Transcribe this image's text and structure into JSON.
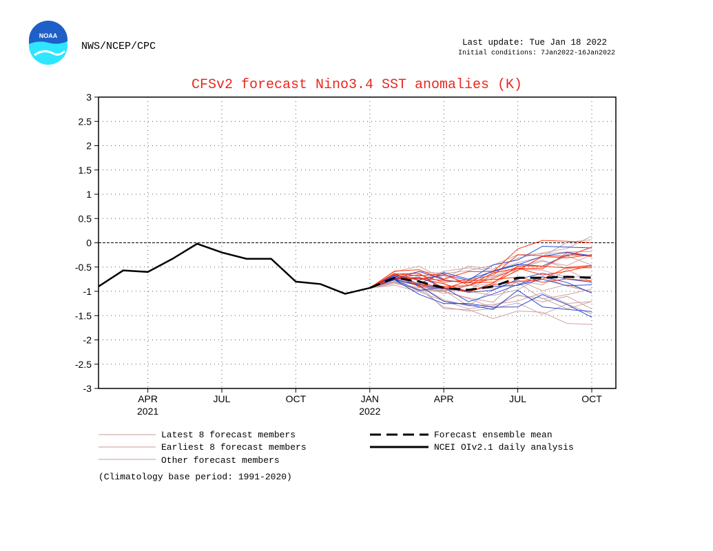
{
  "header": {
    "agency": "NWS/NCEP/CPC",
    "logo_text": "NOAA",
    "last_update": "Last update: Tue Jan 18 2022",
    "initial_conditions": "Initial conditions: 7Jan2022-16Jan2022"
  },
  "colors": {
    "title": "#e8281e",
    "latest_members": "#1f3fd0",
    "earliest_members": "#ff2a00",
    "other_members": "#c89a9a",
    "ensemble_mean": "#000000",
    "analysis": "#000000",
    "logo_blue": "#1f5fc8",
    "logo_cyan": "#2ee6ff"
  },
  "chart_data": {
    "type": "line",
    "title": "CFSv2 forecast Nino3.4 SST anomalies (K)",
    "ylim": [
      -3,
      3
    ],
    "yticks": [
      3,
      2.5,
      2,
      1.5,
      1,
      0.5,
      0,
      -0.5,
      -1,
      -1.5,
      -2,
      -2.5,
      -3
    ],
    "ytick_labels": [
      "3",
      "2.5",
      "2",
      "1.5",
      "1",
      "0.5",
      "0",
      "-0.5",
      "-1",
      "-1.5",
      "-2",
      "-2.5",
      "-3"
    ],
    "x_months": [
      "Feb 2021",
      "Mar 2021",
      "Apr 2021",
      "May 2021",
      "Jun 2021",
      "Jul 2021",
      "Aug 2021",
      "Sep 2021",
      "Oct 2021",
      "Nov 2021",
      "Dec 2021",
      "Jan 2022",
      "Feb 2022",
      "Mar 2022",
      "Apr 2022",
      "May 2022",
      "Jun 2022",
      "Jul 2022",
      "Aug 2022",
      "Sep 2022",
      "Oct 2022"
    ],
    "xtick_labels": [
      {
        "month": "Apr 2021",
        "label": "APR",
        "year": "2021"
      },
      {
        "month": "Jul 2021",
        "label": "JUL",
        "year": ""
      },
      {
        "month": "Oct 2021",
        "label": "OCT",
        "year": ""
      },
      {
        "month": "Jan 2022",
        "label": "JAN",
        "year": "2022"
      },
      {
        "month": "Apr 2022",
        "label": "APR",
        "year": ""
      },
      {
        "month": "Jul 2022",
        "label": "JUL",
        "year": ""
      },
      {
        "month": "Oct 2022",
        "label": "OCT",
        "year": ""
      }
    ],
    "grid": true,
    "zero_line": true,
    "analysis": {
      "name": "NCEI OIv2.1 daily analysis",
      "x": [
        "Feb 2021",
        "Mar 2021",
        "Apr 2021",
        "May 2021",
        "Jun 2021",
        "Jul 2021",
        "Aug 2021",
        "Sep 2021",
        "Oct 2021",
        "Nov 2021",
        "Dec 2021",
        "Jan 2022"
      ],
      "values": [
        -0.9,
        -0.57,
        -0.6,
        -0.33,
        -0.02,
        -0.2,
        -0.33,
        -0.33,
        -0.8,
        -0.85,
        -1.05,
        -0.93
      ]
    },
    "ensemble_mean": {
      "name": "Forecast ensemble mean",
      "x": [
        "Jan 2022",
        "Feb 2022",
        "Mar 2022",
        "Apr 2022",
        "May 2022",
        "Jun 2022",
        "Jul 2022",
        "Aug 2022",
        "Sep 2022",
        "Oct 2022"
      ],
      "values": [
        -0.93,
        -0.72,
        -0.8,
        -0.93,
        -0.97,
        -0.9,
        -0.72,
        -0.72,
        -0.7,
        -0.72
      ]
    },
    "member_groups": [
      {
        "name": "Latest 8 forecast members",
        "color_key": "latest_members",
        "base_offsets": [
          -0.45,
          -0.05,
          0.25,
          -0.2,
          0.35,
          -0.15,
          -0.5,
          0.5
        ]
      },
      {
        "name": "Earliest 8 forecast members",
        "color_key": "earliest_members",
        "base_offsets": [
          0.2,
          0.35,
          0.1,
          0.45,
          0.05,
          0.3,
          0.6,
          0.15
        ]
      },
      {
        "name": "Other forecast members",
        "color_key": "other_members",
        "base_offsets": [
          -0.6,
          -0.4,
          -0.3,
          -0.15,
          0.0,
          0.1,
          0.2,
          0.3,
          0.4,
          -0.5,
          -0.25,
          0.55,
          0.65,
          -0.7,
          -0.35,
          0.25
        ]
      }
    ],
    "legend": {
      "placement": "bottom",
      "latest": "Latest 8 forecast members",
      "earliest": "Earliest 8 forecast members",
      "other": "Other forecast members",
      "mean": "Forecast ensemble mean",
      "analysis": "NCEI OIv2.1 daily analysis",
      "note": "(Climatology base period: 1991-2020)"
    }
  }
}
